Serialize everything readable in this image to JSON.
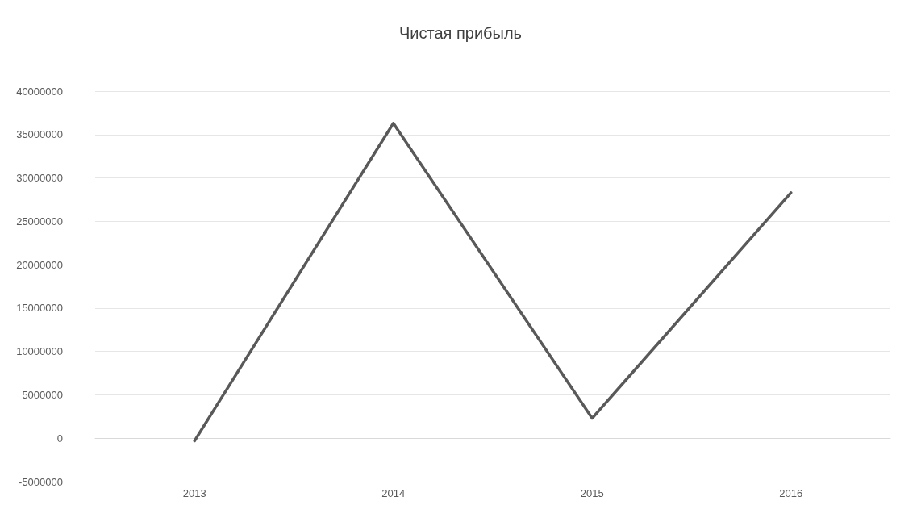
{
  "chart_data": {
    "type": "line",
    "title": "Чистая прибыль",
    "categories": [
      "2013",
      "2014",
      "2015",
      "2016"
    ],
    "series": [
      {
        "color": "#595959",
        "values": [
          -300000,
          36300000,
          2300000,
          28300000
        ]
      }
    ],
    "ylim": [
      -5000000,
      40000000
    ],
    "yticks": [
      -5000000,
      0,
      5000000,
      10000000,
      15000000,
      20000000,
      25000000,
      30000000,
      35000000,
      40000000
    ],
    "grid": "y",
    "marker": "none",
    "line_style": "solid"
  }
}
